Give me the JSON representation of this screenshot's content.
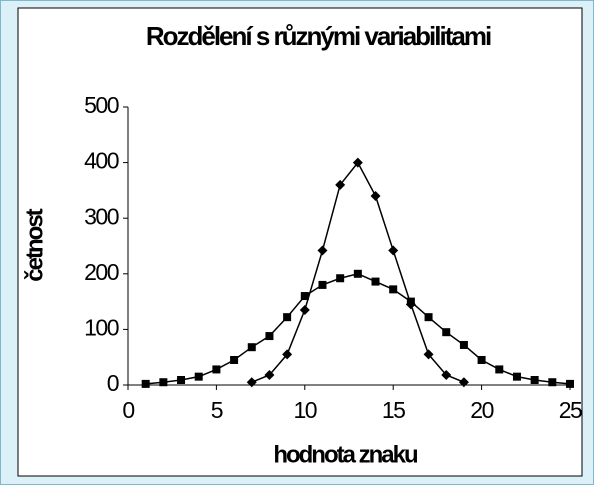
{
  "chart_data": {
    "type": "line",
    "title": "Rozdělení s různými variabilitami",
    "xlabel": "hodnota znaku",
    "ylabel": "četnost",
    "xlim": [
      0,
      25
    ],
    "xticks": [
      0,
      5,
      10,
      15,
      20,
      25
    ],
    "ylim": [
      0,
      500
    ],
    "yticks": [
      0,
      100,
      200,
      300,
      400,
      500
    ],
    "grid": false,
    "series": [
      {
        "color": "#000000",
        "marker": "diamond",
        "x": [
          7,
          8,
          9,
          10,
          11,
          12,
          13,
          14,
          15,
          16,
          17,
          18,
          19
        ],
        "values": [
          5,
          18,
          55,
          135,
          242,
          360,
          400,
          340,
          242,
          145,
          55,
          18,
          5
        ]
      },
      {
        "color": "#000000",
        "marker": "square",
        "x": [
          1,
          2,
          3,
          4,
          5,
          6,
          7,
          8,
          9,
          10,
          11,
          12,
          13,
          14,
          15,
          16,
          17,
          18,
          19,
          20,
          21,
          22,
          23,
          24,
          25
        ],
        "values": [
          2,
          5,
          9,
          15,
          28,
          45,
          68,
          88,
          122,
          160,
          180,
          192,
          200,
          186,
          172,
          150,
          122,
          95,
          72,
          45,
          28,
          15,
          9,
          5,
          2
        ]
      }
    ]
  }
}
